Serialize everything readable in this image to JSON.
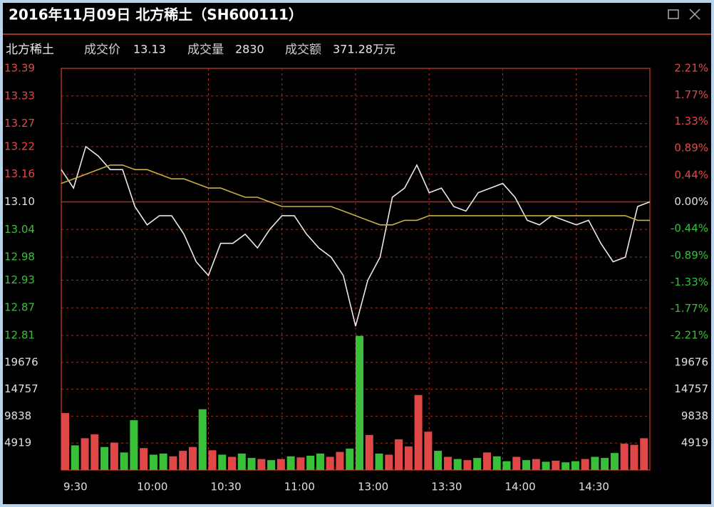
{
  "window_title": "2016年11月09日  北方稀土（SH600111）",
  "info": {
    "name": "北方稀土",
    "price_label": "成交价",
    "price": 13.13,
    "volume_label": "成交量",
    "volume": 2830,
    "amount_label": "成交额",
    "amount": "371.28万元"
  },
  "chart_data": [
    {
      "type": "line",
      "x": [
        0,
        5,
        10,
        15,
        20,
        25,
        30,
        35,
        40,
        45,
        50,
        55,
        60,
        65,
        70,
        75,
        80,
        85,
        90,
        95,
        100,
        105,
        110,
        115,
        120,
        125,
        130,
        135,
        140,
        145,
        150,
        155,
        160,
        165,
        170,
        175,
        180,
        185,
        190,
        195,
        200,
        205,
        210,
        215,
        220,
        225,
        230,
        235,
        240
      ],
      "xlim": [
        0,
        240
      ],
      "series": [
        {
          "color": "#e8e8e8",
          "values": [
            13.17,
            13.13,
            13.22,
            13.2,
            13.17,
            13.17,
            13.09,
            13.05,
            13.07,
            13.07,
            13.03,
            12.97,
            12.94,
            13.01,
            13.01,
            13.03,
            13.0,
            13.04,
            13.07,
            13.07,
            13.03,
            13.0,
            12.98,
            12.94,
            12.83,
            12.93,
            12.98,
            13.11,
            13.13,
            13.18,
            13.12,
            13.13,
            13.09,
            13.08,
            13.12,
            13.13,
            13.14,
            13.11,
            13.06,
            13.05,
            13.07,
            13.06,
            13.05,
            13.06,
            13.01,
            12.97,
            12.98,
            13.09,
            13.1
          ]
        },
        {
          "color": "#c8b040",
          "values": [
            13.14,
            13.15,
            13.16,
            13.17,
            13.18,
            13.18,
            13.17,
            13.17,
            13.16,
            13.15,
            13.15,
            13.14,
            13.13,
            13.13,
            13.12,
            13.11,
            13.11,
            13.1,
            13.09,
            13.09,
            13.09,
            13.09,
            13.09,
            13.08,
            13.07,
            13.06,
            13.05,
            13.05,
            13.06,
            13.06,
            13.07,
            13.07,
            13.07,
            13.07,
            13.07,
            13.07,
            13.07,
            13.07,
            13.07,
            13.07,
            13.07,
            13.07,
            13.07,
            13.07,
            13.07,
            13.07,
            13.07,
            13.06,
            13.06
          ]
        }
      ],
      "ylim": [
        12.81,
        13.39
      ],
      "yticks": [
        13.39,
        13.33,
        13.27,
        13.22,
        13.16,
        {
          "value": 13.1,
          "label": "13.10"
        },
        13.04,
        12.98,
        12.93,
        12.87,
        12.81
      ],
      "y2lim": [
        -2.21,
        2.21
      ],
      "y2ticks": [
        {
          "value": 2.21,
          "label": "2.21%"
        },
        {
          "value": 1.77,
          "label": "1.77%"
        },
        {
          "value": 1.33,
          "label": "1.33%"
        },
        {
          "value": 0.89,
          "label": "0.89%"
        },
        {
          "value": 0.44,
          "label": "0.44%"
        },
        {
          "value": 0,
          "label": "0.00%"
        },
        {
          "value": -0.44,
          "label": "-0.44%"
        },
        {
          "value": -0.89,
          "label": "-0.89%"
        },
        {
          "value": -1.33,
          "label": "-1.33%"
        },
        {
          "value": -1.77,
          "label": "-1.77%"
        },
        {
          "value": -2.21,
          "label": "-2.21%"
        }
      ],
      "up_color": "#e04848",
      "down_color": "#38c038",
      "flat_color": "#e0e0e0",
      "grid_color": "#a83020"
    },
    {
      "type": "bar",
      "x": [
        0,
        4,
        8,
        12,
        16,
        20,
        24,
        28,
        32,
        36,
        40,
        44,
        48,
        52,
        56,
        60,
        64,
        68,
        72,
        76,
        80,
        84,
        88,
        92,
        96,
        100,
        104,
        108,
        112,
        116,
        120,
        124,
        128,
        132,
        136,
        140,
        144,
        148,
        152,
        156,
        160,
        164,
        168,
        172,
        176,
        180,
        184,
        188,
        192,
        196,
        200,
        204,
        208,
        212,
        216,
        220,
        224,
        228,
        232,
        236
      ],
      "values": [
        10400,
        4500,
        5800,
        6500,
        4200,
        5000,
        3200,
        9100,
        4000,
        2800,
        3000,
        2500,
        3500,
        4200,
        11100,
        3600,
        2800,
        2400,
        3000,
        2200,
        2000,
        1800,
        2000,
        2500,
        2300,
        2600,
        3000,
        2400,
        3300,
        3900,
        24500,
        6400,
        3000,
        2800,
        5600,
        4300,
        13700,
        7000,
        3500,
        2400,
        2000,
        1800,
        2200,
        3200,
        2500,
        1600,
        2400,
        1800,
        2000,
        1500,
        1700,
        1400,
        1600,
        2000,
        2400,
        2200,
        3100,
        4800,
        4600,
        5800
      ],
      "colors": [
        "#e04848",
        "#38c038",
        "#e04848",
        "#e04848",
        "#38c038",
        "#e04848",
        "#38c038",
        "#38c038",
        "#e04848",
        "#38c038",
        "#38c038",
        "#e04848",
        "#e04848",
        "#e04848",
        "#38c038",
        "#e04848",
        "#38c038",
        "#e04848",
        "#38c038",
        "#38c038",
        "#e04848",
        "#38c038",
        "#e04848",
        "#38c038",
        "#e04848",
        "#38c038",
        "#38c038",
        "#e04848",
        "#e04848",
        "#38c038",
        "#38c038",
        "#e04848",
        "#38c038",
        "#e04848",
        "#e04848",
        "#e04848",
        "#e04848",
        "#e04848",
        "#38c038",
        "#e04848",
        "#38c038",
        "#e04848",
        "#38c038",
        "#e04848",
        "#38c038",
        "#38c038",
        "#e04848",
        "#38c038",
        "#e04848",
        "#38c038",
        "#e04848",
        "#38c038",
        "#38c038",
        "#e04848",
        "#38c038",
        "#38c038",
        "#38c038",
        "#e04848",
        "#e04848",
        "#e04848"
      ],
      "xlim": [
        0,
        240
      ],
      "xticks": [
        {
          "value": 0,
          "label": "9:30"
        },
        {
          "value": 30,
          "label": "10:00"
        },
        {
          "value": 60,
          "label": "10:30"
        },
        {
          "value": 90,
          "label": "11:00"
        },
        {
          "value": 120,
          "label": "13:00"
        },
        {
          "value": 150,
          "label": "13:30"
        },
        {
          "value": 180,
          "label": "14:00"
        },
        {
          "value": 210,
          "label": "14:30"
        }
      ],
      "ylim": [
        0,
        24595
      ],
      "yticks": [
        19676,
        14757,
        9838,
        4919
      ],
      "label_color": "#e0e0e0",
      "grid_color": "#a83020"
    }
  ]
}
